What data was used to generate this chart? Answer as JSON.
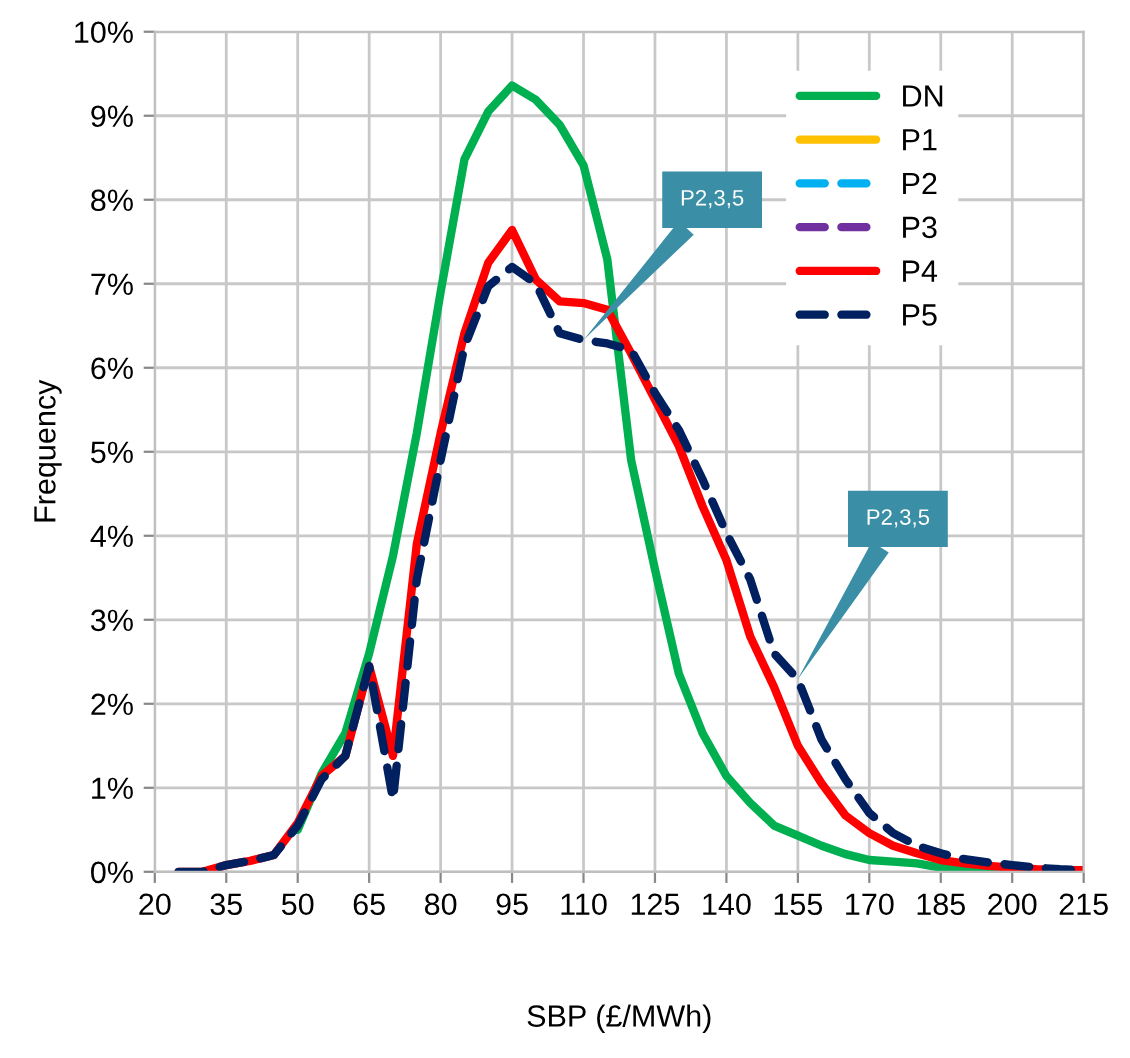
{
  "chart_data": {
    "type": "line",
    "xlabel": "SBP (£/MWh)",
    "ylabel": "Frequency",
    "x": [
      25,
      30,
      35,
      40,
      45,
      50,
      55,
      60,
      65,
      70,
      75,
      80,
      85,
      90,
      95,
      100,
      105,
      110,
      115,
      120,
      125,
      130,
      135,
      140,
      145,
      150,
      155,
      160,
      165,
      170,
      175,
      180,
      185,
      190,
      195,
      200,
      205,
      210,
      215
    ],
    "series": [
      {
        "name": "DN",
        "color": "#00b050",
        "line_style": "solid",
        "values": [
          null,
          null,
          null,
          null,
          null,
          0.5,
          1.17,
          1.65,
          2.6,
          3.76,
          5.22,
          6.9,
          8.48,
          9.05,
          9.36,
          9.19,
          8.89,
          8.41,
          7.29,
          4.9,
          3.6,
          2.36,
          1.65,
          1.14,
          0.82,
          0.55,
          0.43,
          0.31,
          0.21,
          0.14,
          0.12,
          0.1,
          0.05,
          0.02,
          0.01,
          0,
          null,
          null,
          null
        ]
      },
      {
        "name": "P1",
        "color": "#ffc000",
        "line_style": "solid",
        "values": [
          null,
          null,
          null,
          null,
          null,
          null,
          null,
          null,
          null,
          null,
          null,
          null,
          null,
          null,
          null,
          null,
          null,
          null,
          null,
          null,
          null,
          null,
          null,
          null,
          null,
          null,
          null,
          null,
          null,
          null,
          null,
          null,
          null,
          null,
          null,
          null,
          null,
          null,
          null
        ]
      },
      {
        "name": "P2",
        "color": "#00b0f0",
        "line_style": "dashed",
        "values": [
          null,
          null,
          null,
          null,
          null,
          null,
          null,
          null,
          null,
          null,
          null,
          null,
          null,
          null,
          null,
          null,
          null,
          null,
          null,
          null,
          null,
          null,
          null,
          null,
          null,
          null,
          null,
          null,
          null,
          null,
          null,
          null,
          null,
          null,
          null,
          null,
          null,
          null,
          null
        ]
      },
      {
        "name": "P3",
        "color": "#7030a0",
        "line_style": "dashed",
        "values": [
          null,
          null,
          null,
          null,
          null,
          null,
          null,
          null,
          null,
          null,
          null,
          null,
          null,
          null,
          null,
          null,
          null,
          null,
          null,
          null,
          null,
          null,
          null,
          null,
          null,
          null,
          null,
          null,
          null,
          null,
          null,
          null,
          null,
          null,
          null,
          null,
          null,
          null,
          null
        ]
      },
      {
        "name": "P4",
        "color": "#ff0000",
        "line_style": "solid",
        "values": [
          0,
          0,
          0.08,
          0.13,
          0.2,
          0.58,
          1.14,
          1.38,
          2.45,
          1.38,
          3.9,
          5.22,
          6.41,
          7.25,
          7.64,
          7.05,
          6.79,
          6.77,
          6.69,
          6.17,
          5.62,
          5.07,
          4.35,
          3.71,
          2.8,
          2.2,
          1.5,
          1.05,
          0.67,
          0.46,
          0.31,
          0.22,
          0.14,
          0.1,
          0.07,
          0.05,
          0.03,
          0.02,
          0.02
        ]
      },
      {
        "name": "P5",
        "color": "#002060",
        "line_style": "dashed",
        "values": [
          0,
          0,
          0.08,
          0.13,
          0.2,
          0.55,
          1.1,
          1.38,
          2.45,
          0.86,
          3.48,
          4.9,
          6.25,
          6.97,
          7.2,
          7.0,
          6.41,
          6.33,
          6.29,
          6.21,
          5.7,
          5.26,
          4.67,
          4.03,
          3.48,
          2.6,
          2.29,
          1.57,
          1.1,
          0.7,
          0.46,
          0.31,
          0.22,
          0.15,
          0.11,
          0.08,
          0.05,
          0.03,
          0.02
        ]
      }
    ],
    "xlim": [
      20,
      215
    ],
    "xticks": [
      20,
      35,
      50,
      65,
      80,
      95,
      110,
      125,
      140,
      155,
      170,
      185,
      200,
      215
    ],
    "ylim": [
      0,
      10
    ],
    "yticks": [
      {
        "value": 0,
        "label": "0%"
      },
      {
        "value": 1,
        "label": "1%"
      },
      {
        "value": 2,
        "label": "2%"
      },
      {
        "value": 3,
        "label": "3%"
      },
      {
        "value": 4,
        "label": "4%"
      },
      {
        "value": 5,
        "label": "5%"
      },
      {
        "value": 6,
        "label": "6%"
      },
      {
        "value": 7,
        "label": "7%"
      },
      {
        "value": 8,
        "label": "8%"
      },
      {
        "value": 9,
        "label": "9%"
      },
      {
        "value": 10,
        "label": "10%"
      }
    ],
    "annotations": [
      "P2,3,5",
      "P2,3,5"
    ],
    "grid": true,
    "legend": "top right",
    "marker": "none"
  }
}
